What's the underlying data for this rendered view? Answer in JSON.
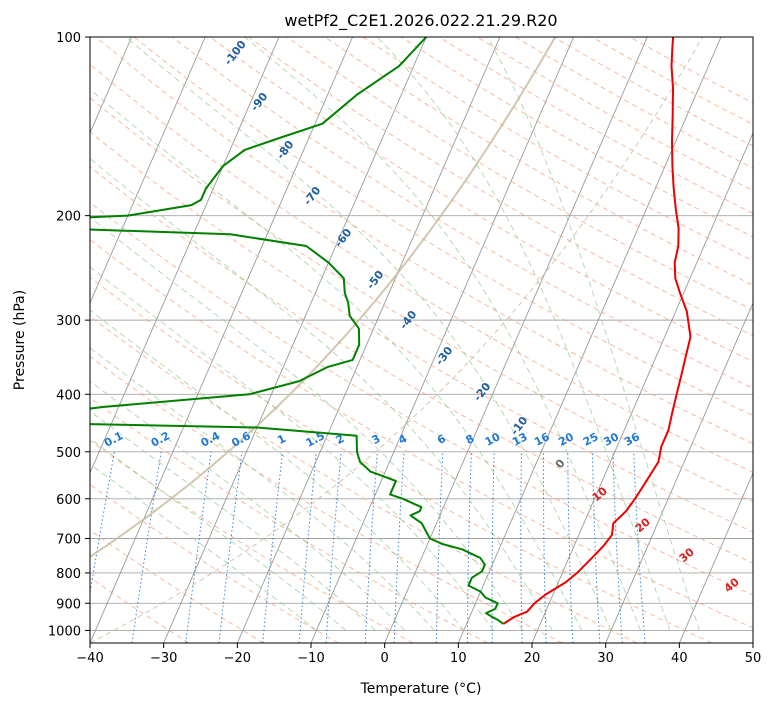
{
  "chart_data": {
    "type": "line",
    "title": "wetPf2_C2E1.2026.022.21.29.R20",
    "xlabel": "Temperature (°C)",
    "ylabel": "Pressure (hPa)",
    "xlim": [
      -40,
      50
    ],
    "ylim": [
      1050,
      100
    ],
    "y_scale": "log",
    "x_ticks": [
      "−40",
      "−30",
      "−20",
      "−10",
      "0",
      "10",
      "20",
      "30",
      "40",
      "50"
    ],
    "y_ticks": [
      "100",
      "200",
      "300",
      "400",
      "500",
      "600",
      "700",
      "800",
      "900",
      "1000"
    ],
    "grid": true,
    "series": [
      {
        "role": "temperature",
        "color": "#ee0000",
        "points": [
          [
            15,
            975
          ],
          [
            16,
            950
          ],
          [
            17.5,
            930
          ],
          [
            18,
            900
          ],
          [
            19,
            870
          ],
          [
            21,
            830
          ],
          [
            22,
            800
          ],
          [
            23,
            760
          ],
          [
            24,
            720
          ],
          [
            24.5,
            690
          ],
          [
            24,
            660
          ],
          [
            25,
            630
          ],
          [
            25.5,
            600
          ],
          [
            26,
            560
          ],
          [
            26.5,
            520
          ],
          [
            26,
            490
          ],
          [
            26,
            460
          ],
          [
            25.5,
            430
          ],
          [
            25,
            400
          ],
          [
            24.5,
            370
          ],
          [
            24,
            345
          ],
          [
            23.5,
            320
          ],
          [
            21.5,
            290
          ],
          [
            19.5,
            270
          ],
          [
            18,
            255
          ],
          [
            17,
            240
          ],
          [
            16.5,
            225
          ],
          [
            15.5,
            210
          ],
          [
            14,
            195
          ],
          [
            12.5,
            180
          ],
          [
            11,
            165
          ],
          [
            9.5,
            150
          ],
          [
            8,
            135
          ],
          [
            6.5,
            122
          ],
          [
            5,
            112
          ],
          [
            4,
            104
          ],
          [
            3.5,
            100
          ]
        ]
      },
      {
        "role": "dewpoint",
        "color": "#008000",
        "points": [
          [
            15,
            975
          ],
          [
            14,
            960
          ],
          [
            13,
            948
          ],
          [
            12,
            935
          ],
          [
            13,
            920
          ],
          [
            13,
            900
          ],
          [
            11,
            880
          ],
          [
            10,
            860
          ],
          [
            8,
            840
          ],
          [
            8,
            815
          ],
          [
            9,
            795
          ],
          [
            9,
            775
          ],
          [
            8,
            755
          ],
          [
            5,
            730
          ],
          [
            2,
            715
          ],
          [
            0,
            700
          ],
          [
            -1,
            680
          ],
          [
            -2,
            660
          ],
          [
            -4,
            640
          ],
          [
            -3,
            630
          ],
          [
            -3,
            620
          ],
          [
            -6,
            600
          ],
          [
            -8,
            590
          ],
          [
            -8,
            575
          ],
          [
            -8,
            560
          ],
          [
            -12,
            540
          ],
          [
            -14,
            520
          ],
          [
            -15,
            500
          ],
          [
            -16,
            470
          ],
          [
            -30,
            455
          ],
          [
            -68,
            445
          ],
          [
            -52,
            420
          ],
          [
            -33,
            400
          ],
          [
            -27,
            380
          ],
          [
            -24,
            360
          ],
          [
            -21,
            350
          ],
          [
            -21,
            330
          ],
          [
            -22,
            310
          ],
          [
            -24,
            295
          ],
          [
            -25,
            280
          ],
          [
            -26,
            270
          ],
          [
            -27,
            255
          ],
          [
            -30,
            240
          ],
          [
            -34,
            225
          ],
          [
            -45,
            215
          ],
          [
            -80,
            208
          ],
          [
            -80,
            205
          ],
          [
            -60,
            200
          ],
          [
            -52,
            192
          ],
          [
            -51,
            188
          ],
          [
            -51,
            180
          ],
          [
            -50,
            165
          ],
          [
            -48,
            155
          ],
          [
            -44,
            148
          ],
          [
            -39,
            140
          ],
          [
            -36,
            125
          ],
          [
            -32,
            112
          ],
          [
            -30,
            100
          ]
        ]
      }
    ],
    "dry_adiabat_labels": [
      "-100",
      "-90",
      "-80",
      "-70",
      "-60",
      "-50",
      "-40",
      "-30",
      "-20",
      "-10",
      "0",
      "10",
      "20",
      "30",
      "40"
    ],
    "mixing_ratio_labels": [
      "0.1",
      "0.2",
      "0.4",
      "0.6",
      "1",
      "1.5",
      "2",
      "3",
      "4",
      "6",
      "8",
      "10",
      "13",
      "16",
      "20",
      "25",
      "30",
      "36"
    ],
    "colors": {
      "isotherm": "#888888",
      "dry_adiabat": "#f5a07a",
      "moist_adiabat": "#8fc98f",
      "mixing_ratio": "#1f77d4",
      "dry_label": "#1f5fa0",
      "mixing_label": "#1f77d4",
      "moist_label": "#d62020",
      "zero_label": "#666666",
      "curve": "#c8b89a"
    }
  }
}
